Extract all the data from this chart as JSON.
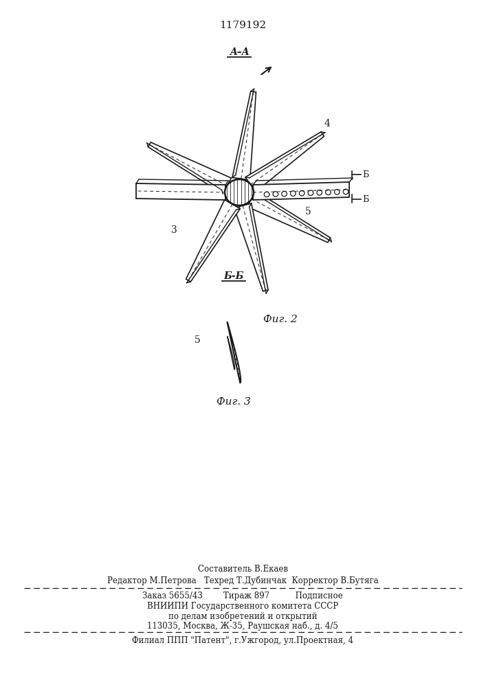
{
  "title": "1179192",
  "fig2_label": "Фиг. 2",
  "fig3_label": "Фиг. 3",
  "section_AA": "A–A",
  "section_BB_label": "Б-Б",
  "label3": "3",
  "label4": "4",
  "label5a": "5",
  "label5b": "5",
  "bg_color": "#ffffff",
  "line_color": "#1a1a1a",
  "footer_line1": "Составитель В.Екаев",
  "footer_line2": "Редактор М.Петрова   Техред Т.Дубинчак  Корректор В.Бутяга",
  "footer_line3": "Заказ 5655/43        Тираж 897          Подписное",
  "footer_line4": "ВНИИПИ Государственного комитета СССР",
  "footer_line5": "по делам изобретений и открытий",
  "footer_line6": "113035, Москва, Ж-35, Раушская наб., д. 4/5",
  "footer_line7": "Филиал ППП \"Патент\", г.Ужгород, ул.Проектная, 4"
}
